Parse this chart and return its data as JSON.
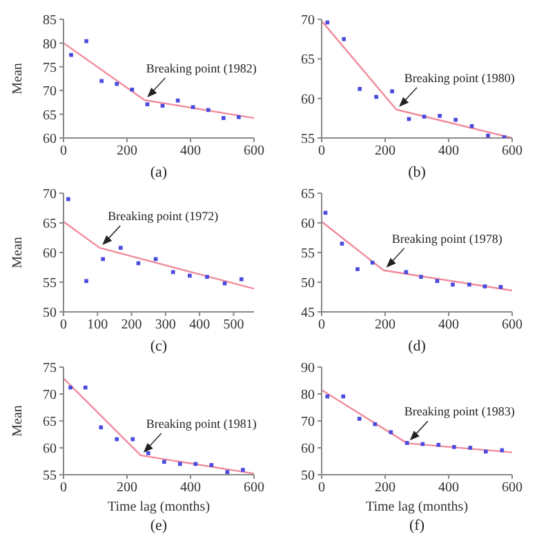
{
  "chart_data": [
    {
      "type": "scatter",
      "title": "(a)",
      "ylabel": "Mean",
      "xlim": [
        0,
        600
      ],
      "xticks": [
        0,
        200,
        400,
        600
      ],
      "ylim": [
        60,
        85
      ],
      "yticks": [
        60,
        65,
        70,
        75,
        80,
        85
      ],
      "annotations": [
        {
          "text": "Breaking point (1982)",
          "x": 255,
          "y": 68
        }
      ],
      "series": [
        {
          "type": "scatter",
          "color": "#4a4adf",
          "marker": "square",
          "x": [
            24,
            72,
            120,
            168,
            216,
            264,
            312,
            360,
            408,
            456,
            504,
            552
          ],
          "values": [
            77.5,
            80.4,
            72.0,
            71.4,
            70.2,
            67.1,
            66.8,
            67.9,
            66.5,
            65.9,
            64.2,
            64.4
          ]
        },
        {
          "type": "line",
          "color": "#f08a9a",
          "marker": "none",
          "x": [
            0,
            255,
            600
          ],
          "values": [
            80,
            68,
            64.2
          ]
        }
      ]
    },
    {
      "type": "scatter",
      "title": "(b)",
      "xlim": [
        0,
        600
      ],
      "xticks": [
        0,
        200,
        400,
        600
      ],
      "ylim": [
        55,
        70
      ],
      "yticks": [
        55,
        60,
        65,
        70
      ],
      "annotations": [
        {
          "text": "Breaking point (1980)",
          "x": 235,
          "y": 58.6
        }
      ],
      "series": [
        {
          "type": "scatter",
          "color": "#4a4adf",
          "marker": "square",
          "x": [
            18,
            70,
            120,
            172,
            222,
            275,
            323,
            372,
            422,
            473,
            524,
            575
          ],
          "values": [
            69.6,
            67.5,
            61.2,
            60.2,
            60.9,
            57.4,
            57.7,
            57.8,
            57.3,
            56.5,
            55.3,
            55.1
          ]
        },
        {
          "type": "line",
          "color": "#f08a9a",
          "marker": "none",
          "x": [
            0,
            235,
            600
          ],
          "values": [
            69.8,
            58.6,
            55
          ]
        }
      ]
    },
    {
      "type": "scatter",
      "title": "(c)",
      "ylabel": "Mean",
      "xlim": [
        0,
        560
      ],
      "xticks": [
        0,
        100,
        200,
        300,
        400,
        500
      ],
      "ylim": [
        50,
        70
      ],
      "yticks": [
        50,
        55,
        60,
        65,
        70
      ],
      "annotations": [
        {
          "text": "Breaking point (1972)",
          "x": 106,
          "y": 60.8
        }
      ],
      "series": [
        {
          "type": "scatter",
          "color": "#4a4adf",
          "marker": "square",
          "x": [
            14,
            67,
            116,
            168,
            220,
            271,
            322,
            371,
            422,
            474,
            523
          ],
          "values": [
            69.0,
            55.2,
            58.9,
            60.8,
            58.2,
            58.9,
            56.7,
            56.1,
            55.9,
            54.8,
            55.5
          ]
        },
        {
          "type": "line",
          "color": "#f08a9a",
          "marker": "none",
          "x": [
            0,
            106,
            560
          ],
          "values": [
            65.2,
            60.8,
            53.9
          ]
        }
      ]
    },
    {
      "type": "scatter",
      "title": "(d)",
      "xlim": [
        0,
        600
      ],
      "xticks": [
        0,
        200,
        400,
        600
      ],
      "ylim": [
        45,
        65
      ],
      "yticks": [
        45,
        50,
        55,
        60,
        65
      ],
      "annotations": [
        {
          "text": "Breaking point (1978)",
          "x": 195,
          "y": 52
        }
      ],
      "series": [
        {
          "type": "scatter",
          "color": "#4a4adf",
          "marker": "square",
          "x": [
            12,
            64,
            113,
            160,
            266,
            313,
            364,
            413,
            465,
            514,
            564
          ],
          "values": [
            61.7,
            56.5,
            52.2,
            53.3,
            51.7,
            50.9,
            50.2,
            49.6,
            49.6,
            49.3,
            49.2
          ]
        },
        {
          "type": "line",
          "color": "#f08a9a",
          "marker": "none",
          "x": [
            0,
            195,
            600
          ],
          "values": [
            60.2,
            52,
            48.6
          ]
        }
      ]
    },
    {
      "type": "scatter",
      "title": "(e)",
      "xlabel": "Time lag (months)",
      "ylabel": "Mean",
      "xlim": [
        0,
        600
      ],
      "xticks": [
        0,
        200,
        400,
        600
      ],
      "ylim": [
        55,
        75
      ],
      "yticks": [
        55,
        60,
        65,
        70,
        75
      ],
      "annotations": [
        {
          "text": "Breaking point (1981)",
          "x": 243,
          "y": 58.6
        }
      ],
      "series": [
        {
          "type": "scatter",
          "color": "#4a4adf",
          "marker": "square",
          "x": [
            22,
            69,
            118,
            168,
            218,
            267,
            317,
            367,
            416,
            466,
            516,
            565
          ],
          "values": [
            71.2,
            71.2,
            63.8,
            61.6,
            61.6,
            59.0,
            57.4,
            57.0,
            57.0,
            56.8,
            55.5,
            55.9
          ]
        },
        {
          "type": "line",
          "color": "#f08a9a",
          "marker": "none",
          "x": [
            0,
            243,
            600
          ],
          "values": [
            72.9,
            58.6,
            55.2
          ]
        }
      ]
    },
    {
      "type": "scatter",
      "title": "(f)",
      "xlabel": "Time lag (months)",
      "xlim": [
        0,
        600
      ],
      "xticks": [
        0,
        200,
        400,
        600
      ],
      "ylim": [
        50,
        90
      ],
      "yticks": [
        50,
        60,
        70,
        80,
        90
      ],
      "annotations": [
        {
          "text": "Breaking point (1983)",
          "x": 269,
          "y": 61.7
        }
      ],
      "series": [
        {
          "type": "scatter",
          "color": "#4a4adf",
          "marker": "square",
          "x": [
            18,
            68,
            119,
            168,
            218,
            269,
            318,
            368,
            417,
            468,
            517,
            568
          ],
          "values": [
            79.1,
            79.1,
            70.8,
            68.8,
            65.8,
            61.8,
            61.4,
            61.1,
            60.3,
            60.0,
            58.6,
            59.1
          ]
        },
        {
          "type": "line",
          "color": "#f08a9a",
          "marker": "none",
          "x": [
            0,
            269,
            600
          ],
          "values": [
            81.5,
            61.7,
            58.3
          ]
        }
      ]
    }
  ]
}
